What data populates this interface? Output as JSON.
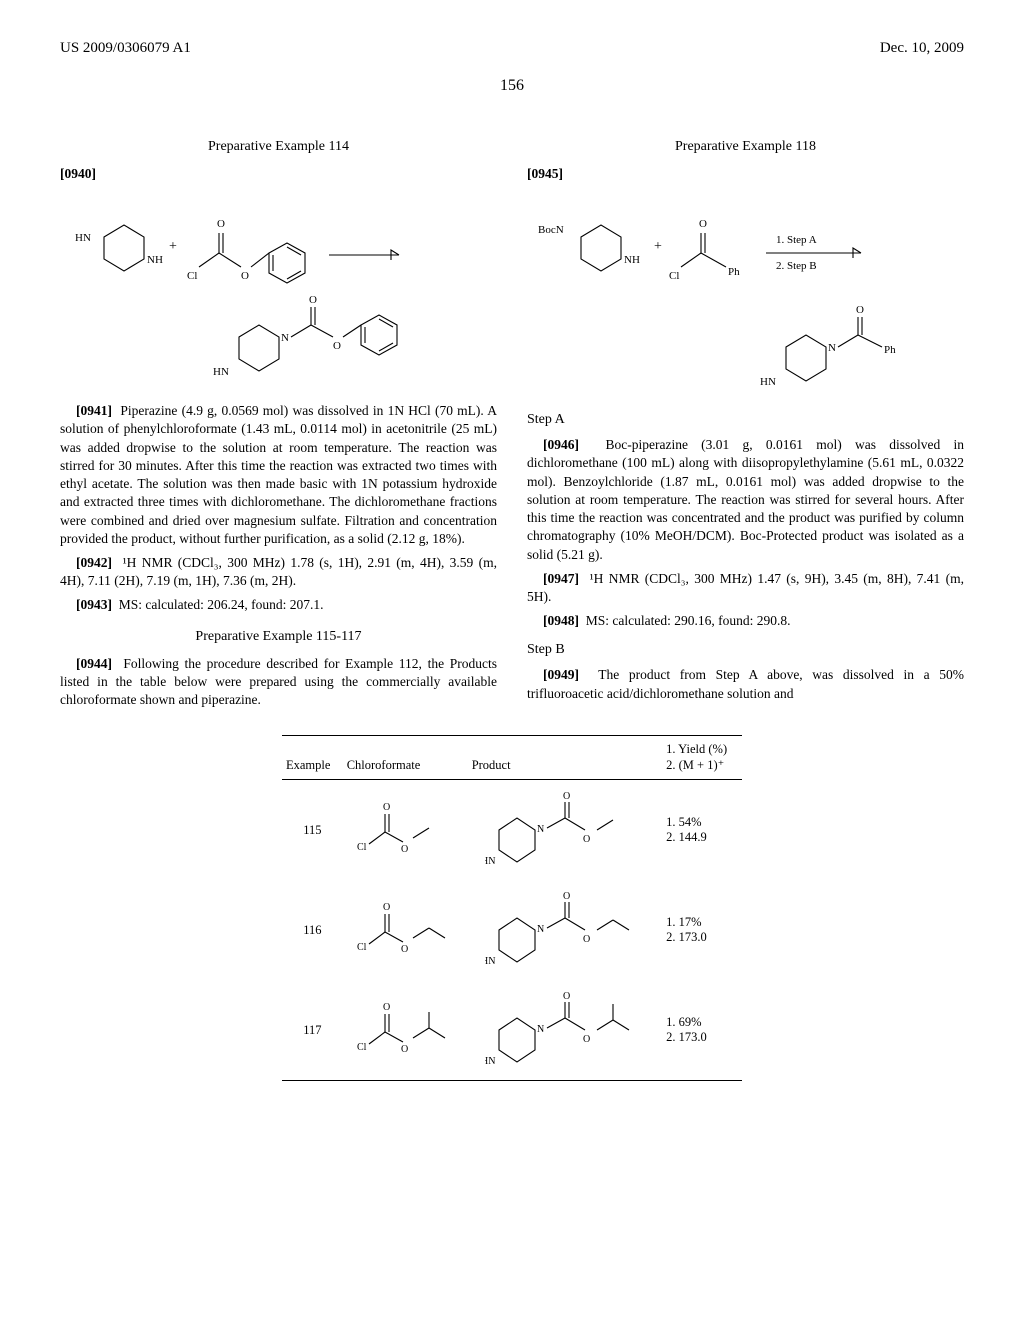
{
  "header": {
    "left": "US 2009/0306079 A1",
    "right": "Dec. 10, 2009"
  },
  "page_number": "156",
  "col_left": {
    "title_114": "Preparative Example 114",
    "p0940": "[0940]",
    "p0941_num": "[0941]",
    "p0941_text": "Piperazine (4.9 g, 0.0569 mol) was dissolved in 1N HCl (70 mL). A solution of phenylchloroformate (1.43 mL, 0.0114 mol) in acetonitrile (25 mL) was added dropwise to the solution at room temperature. The reaction was stirred for 30 minutes. After this time the reaction was extracted two times with ethyl acetate. The solution was then made basic with 1N potassium hydroxide and extracted three times with dichloromethane. The dichloromethane fractions were combined and dried over magnesium sulfate. Filtration and concentration provided the product, without further purification, as a solid (2.12 g, 18%).",
    "p0942_num": "[0942]",
    "p0942_text": "¹H NMR (CDCl₃, 300 MHz) 1.78 (s, 1H), 2.91 (m, 4H), 3.59 (m, 4H), 7.11 (2H), 7.19 (m, 1H), 7.36 (m, 2H).",
    "p0943_num": "[0943]",
    "p0943_text": "MS: calculated: 206.24, found: 207.1.",
    "title_115": "Preparative Example 115-117",
    "p0944_num": "[0944]",
    "p0944_text": "Following the procedure described for Example 112, the Products listed in the table below were prepared using the commercially available chloroformate shown and piperazine."
  },
  "col_right": {
    "title_118": "Preparative Example 118",
    "p0945": "[0945]",
    "stepA": "Step A",
    "p0946_num": "[0946]",
    "p0946_text": "Boc-piperazine (3.01 g, 0.0161 mol) was dissolved in dichloromethane (100 mL) along with diisopropylethylamine (5.61 mL, 0.0322 mol). Benzoylchloride (1.87 mL, 0.0161 mol) was added dropwise to the solution at room temperature. The reaction was stirred for several hours. After this time the reaction was concentrated and the product was purified by column chromatography (10% MeOH/DCM). Boc-Protected product was isolated as a solid (5.21 g).",
    "p0947_num": "[0947]",
    "p0947_text": "¹H NMR (CDCl₃, 300 MHz) 1.47 (s, 9H), 3.45 (m, 8H), 7.41 (m, 5H).",
    "p0948_num": "[0948]",
    "p0948_text": "MS: calculated: 290.16, found: 290.8.",
    "stepB": "Step B",
    "p0949_num": "[0949]",
    "p0949_text": "The product from Step A above, was dissolved in a 50% trifluoroacetic acid/dichloromethane solution and"
  },
  "table": {
    "col_headers": {
      "c1": "Example",
      "c2": "Chloroformate",
      "c3": "Product",
      "c4_l1": "1. Yield (%)",
      "c4_l2": "2. (M + 1)⁺"
    },
    "rows": [
      {
        "ex": "115",
        "yield": "1. 54%\n2. 144.9",
        "chloro_type": "methyl",
        "prod_type": "methyl"
      },
      {
        "ex": "116",
        "yield": "1. 17%\n2. 173.0",
        "chloro_type": "ethyl",
        "prod_type": "ethyl"
      },
      {
        "ex": "117",
        "yield": "1. 69%\n2. 173.0",
        "chloro_type": "isopropyl",
        "prod_type": "isopropyl"
      }
    ]
  },
  "svg_labels": {
    "HN": "HN",
    "NH": "NH",
    "O": "O",
    "Cl": "Cl",
    "N": "N",
    "Ph": "Ph",
    "BocN": "BocN",
    "step_a": "1. Step A",
    "step_b": "2. Step B"
  },
  "style": {
    "font": "Times New Roman",
    "text_color": "#000000",
    "bg_color": "#ffffff",
    "line_color": "#000000",
    "stroke_width": 1.1,
    "header_fontsize": 15,
    "body_fontsize": 13.5,
    "table_fontsize": 12.5,
    "svg_label_fontsize": 11
  }
}
